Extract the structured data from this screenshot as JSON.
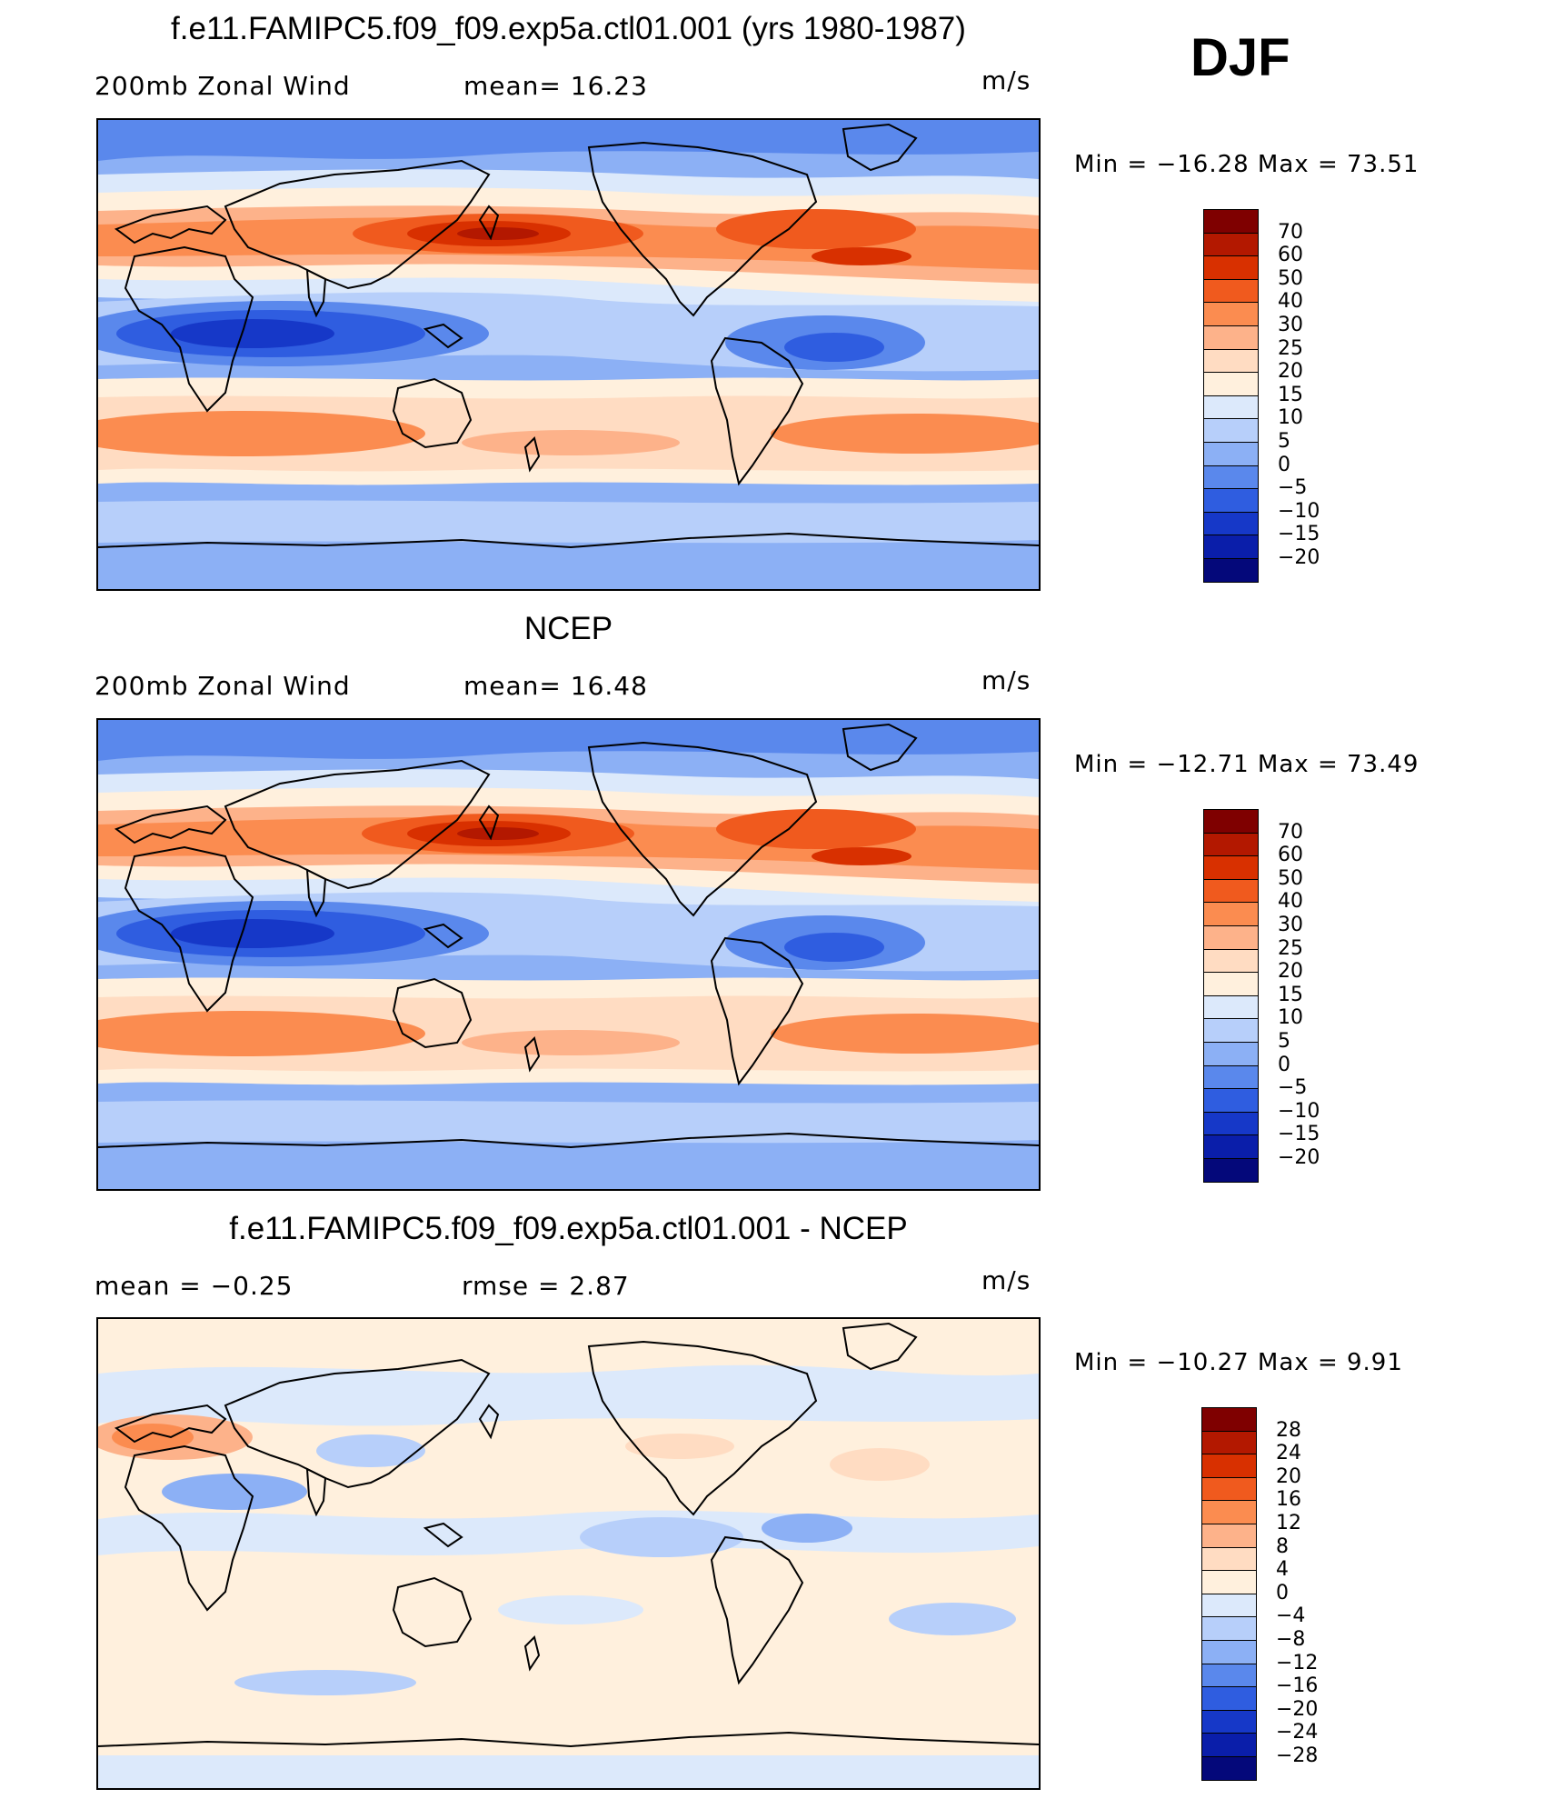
{
  "season_label": "DJF",
  "panels": [
    {
      "title": "f.e11.FAMIPC5.f09_f09.exp5a.ctl01.001 (yrs 1980-1987)",
      "left_label": "200mb  Zonal  Wind",
      "stat_label": "mean=   16.23",
      "units": "m/s",
      "minmax": "Min  =  −16.28  Max  =    73.51",
      "colorbar_ticks": [
        "70",
        "60",
        "50",
        "40",
        "30",
        "25",
        "20",
        "15",
        "10",
        "5",
        "0",
        "−5",
        "−10",
        "−15",
        "−20"
      ],
      "colorbar_colors": [
        "#7f0000",
        "#b31800",
        "#d83000",
        "#f05a1e",
        "#fb8c50",
        "#fdb28a",
        "#ffdcc2",
        "#fff0dd",
        "#dce9fb",
        "#b7cffa",
        "#8cb0f5",
        "#5a88ec",
        "#2f5de0",
        "#1638c8",
        "#0a1eaa",
        "#04087a"
      ],
      "map_field": "model"
    },
    {
      "title": "NCEP",
      "left_label": "200mb  Zonal  Wind",
      "stat_label": "mean=   16.48",
      "units": "m/s",
      "minmax": "Min  =  −12.71  Max  =    73.49",
      "colorbar_ticks": [
        "70",
        "60",
        "50",
        "40",
        "30",
        "25",
        "20",
        "15",
        "10",
        "5",
        "0",
        "−5",
        "−10",
        "−15",
        "−20"
      ],
      "colorbar_colors": [
        "#7f0000",
        "#b31800",
        "#d83000",
        "#f05a1e",
        "#fb8c50",
        "#fdb28a",
        "#ffdcc2",
        "#fff0dd",
        "#dce9fb",
        "#b7cffa",
        "#8cb0f5",
        "#5a88ec",
        "#2f5de0",
        "#1638c8",
        "#0a1eaa",
        "#04087a"
      ],
      "map_field": "obs"
    },
    {
      "title": "f.e11.FAMIPC5.f09_f09.exp5a.ctl01.001 - NCEP",
      "left_label": "mean  =    −0.25",
      "stat_label": "rmse  =     2.87",
      "units": "m/s",
      "minmax": "Min  =  −10.27  Max  =     9.91",
      "colorbar_ticks": [
        "28",
        "24",
        "20",
        "16",
        "12",
        "8",
        "4",
        "0",
        "−4",
        "−8",
        "−12",
        "−16",
        "−20",
        "−24",
        "−28"
      ],
      "colorbar_colors": [
        "#7f0000",
        "#b31800",
        "#d83000",
        "#f05a1e",
        "#fb8c50",
        "#fdb28a",
        "#ffdcc2",
        "#fff0dd",
        "#dce9fb",
        "#b7cffa",
        "#8cb0f5",
        "#5a88ec",
        "#2f5de0",
        "#1638c8",
        "#0a1eaa",
        "#04087a"
      ],
      "map_field": "diff"
    }
  ]
}
